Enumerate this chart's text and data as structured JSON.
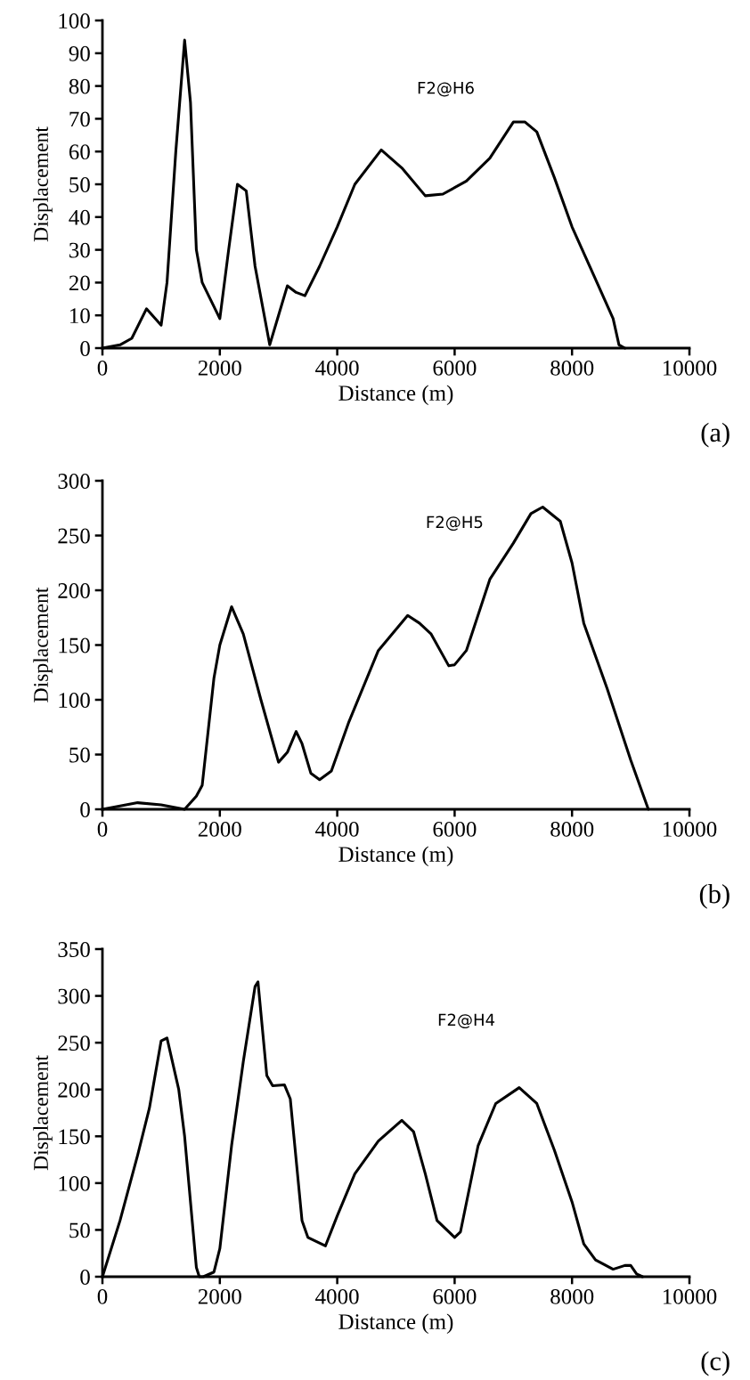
{
  "chart_data": [
    {
      "type": "line",
      "xlabel": "Distance (m)",
      "ylabel": "Displacement",
      "annotations": [
        "F2@H6",
        "(a)"
      ],
      "xlim": [
        0,
        10000
      ],
      "ylim": [
        0,
        100
      ],
      "xticks": [
        0,
        2000,
        4000,
        6000,
        8000,
        10000
      ],
      "yticks": [
        0,
        10,
        20,
        30,
        40,
        50,
        60,
        70,
        80,
        90,
        100
      ],
      "series": [
        {
          "color": "#000000",
          "x": [
            0,
            300,
            500,
            750,
            1000,
            1100,
            1250,
            1400,
            1500,
            1600,
            1700,
            2000,
            2150,
            2300,
            2450,
            2600,
            2850,
            3000,
            3150,
            3300,
            3450,
            3700,
            4000,
            4300,
            4750,
            5100,
            5500,
            5800,
            6200,
            6600,
            7000,
            7200,
            7400,
            7700,
            8000,
            8400,
            8700,
            8800,
            8900
          ],
          "values": [
            0,
            1,
            3,
            12,
            7,
            20,
            60,
            94,
            75,
            30,
            20,
            9,
            30,
            50,
            48,
            25,
            1,
            10,
            19,
            17,
            16,
            25,
            37,
            50,
            60.5,
            55,
            46.5,
            47,
            51,
            58,
            69,
            69,
            66,
            52,
            37,
            21,
            9,
            1,
            0
          ]
        }
      ]
    },
    {
      "type": "line",
      "xlabel": "Distance (m)",
      "ylabel": "Displacement",
      "annotations": [
        "F2@H5",
        "(b)"
      ],
      "xlim": [
        0,
        10000
      ],
      "ylim": [
        0,
        300
      ],
      "xticks": [
        0,
        2000,
        4000,
        6000,
        8000,
        10000
      ],
      "yticks": [
        0,
        50,
        100,
        150,
        200,
        250,
        300
      ],
      "series": [
        {
          "color": "#000000",
          "x": [
            0,
            600,
            1000,
            1300,
            1400,
            1600,
            1700,
            1900,
            2000,
            2200,
            2400,
            2700,
            3000,
            3150,
            3300,
            3400,
            3550,
            3700,
            3900,
            4200,
            4700,
            5200,
            5400,
            5600,
            5900,
            6000,
            6200,
            6600,
            7000,
            7300,
            7500,
            7800,
            8000,
            8200,
            8600,
            9000,
            9300
          ],
          "values": [
            0,
            6,
            4,
            1,
            0,
            12,
            22,
            120,
            150,
            185,
            160,
            100,
            43,
            52,
            71,
            60,
            33,
            27,
            35,
            80,
            145,
            177,
            170,
            160,
            131,
            132,
            145,
            210,
            243,
            270,
            276,
            263,
            225,
            170,
            110,
            45,
            0
          ]
        }
      ]
    },
    {
      "type": "line",
      "xlabel": "Distance (m)",
      "ylabel": "Displacement",
      "annotations": [
        "F2@H4",
        "(c)"
      ],
      "xlim": [
        0,
        10000
      ],
      "ylim": [
        0,
        350
      ],
      "xticks": [
        0,
        2000,
        4000,
        6000,
        8000,
        10000
      ],
      "yticks": [
        0,
        50,
        100,
        150,
        200,
        250,
        300,
        350
      ],
      "series": [
        {
          "color": "#000000",
          "x": [
            0,
            300,
            600,
            800,
            1000,
            1100,
            1300,
            1400,
            1600,
            1650,
            1720,
            1900,
            2000,
            2200,
            2400,
            2600,
            2650,
            2800,
            2900,
            3100,
            3200,
            3400,
            3500,
            3800,
            4000,
            4300,
            4700,
            5100,
            5300,
            5500,
            5700,
            6000,
            6100,
            6400,
            6700,
            7100,
            7400,
            7700,
            8000,
            8200,
            8400,
            8700,
            8900,
            9000,
            9100,
            9200
          ],
          "values": [
            0,
            60,
            130,
            180,
            252,
            255,
            200,
            150,
            10,
            0,
            0,
            5,
            30,
            140,
            230,
            310,
            315,
            215,
            204,
            205,
            190,
            60,
            42,
            33,
            65,
            110,
            145,
            167,
            155,
            110,
            60,
            42,
            48,
            140,
            185,
            202,
            185,
            135,
            80,
            35,
            18,
            8,
            12,
            12,
            3,
            0
          ]
        }
      ]
    }
  ]
}
